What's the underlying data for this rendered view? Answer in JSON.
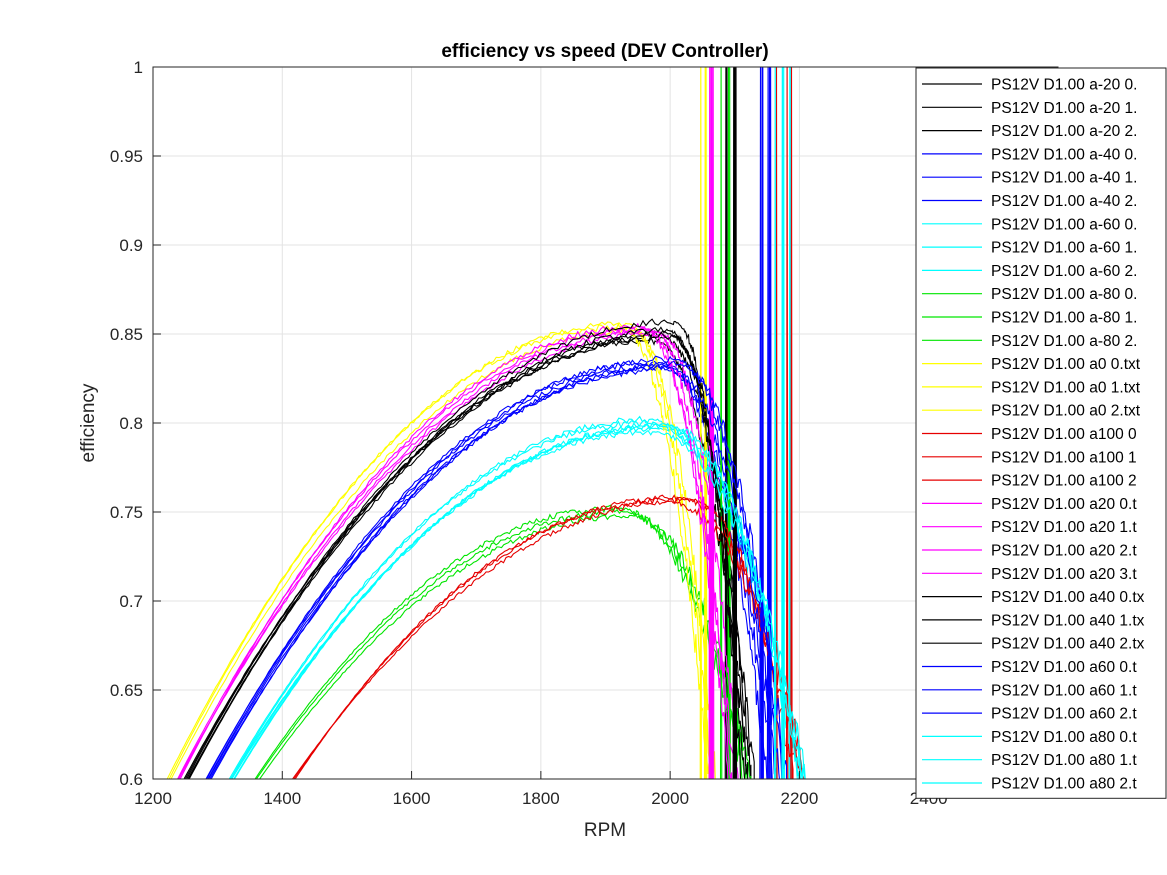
{
  "chart_data": {
    "type": "line",
    "title": "efficiency vs speed (DEV Controller)",
    "xlabel": "RPM",
    "ylabel": "efficiency",
    "xlim": [
      1200,
      2600
    ],
    "ylim": [
      0.6,
      1
    ],
    "xticks": [
      "1200",
      "1400",
      "1600",
      "1800",
      "2000",
      "2200",
      "2400"
    ],
    "yticks": [
      "0.6",
      "0.65",
      "0.7",
      "0.75",
      "0.8",
      "0.85",
      "0.9",
      "0.95",
      "1"
    ],
    "grid": true,
    "legend_position": "top-right",
    "colors": {
      "black": "#000000",
      "blue": "#0000ff",
      "cyan": "#00ffff",
      "green": "#00e600",
      "yellow": "#ffff00",
      "red": "#e60000",
      "magenta": "#ff00ff"
    },
    "series": [
      {
        "name": "PS12V D1.00 a-20 0.",
        "color": "black",
        "peak_x": 1985,
        "peak_y": 0.848,
        "start_x": 1250,
        "drop_x": 2130
      },
      {
        "name": "PS12V D1.00 a-20 1.",
        "color": "black",
        "peak_x": 1975,
        "peak_y": 0.846,
        "start_x": 1255,
        "drop_x": 2120
      },
      {
        "name": "PS12V D1.00 a-20 2.",
        "color": "black",
        "peak_x": 1995,
        "peak_y": 0.85,
        "start_x": 1248,
        "drop_x": 2125
      },
      {
        "name": "PS12V D1.00 a-40 0.",
        "color": "blue",
        "peak_x": 1985,
        "peak_y": 0.832,
        "start_x": 1285,
        "drop_x": 2150
      },
      {
        "name": "PS12V D1.00 a-40 1.",
        "color": "blue",
        "peak_x": 1990,
        "peak_y": 0.83,
        "start_x": 1290,
        "drop_x": 2165
      },
      {
        "name": "PS12V D1.00 a-40 2.",
        "color": "blue",
        "peak_x": 1980,
        "peak_y": 0.834,
        "start_x": 1283,
        "drop_x": 2160
      },
      {
        "name": "PS12V D1.00 a-60 0.",
        "color": "cyan",
        "peak_x": 1960,
        "peak_y": 0.8,
        "start_x": 1320,
        "drop_x": 2205
      },
      {
        "name": "PS12V D1.00 a-60 1.",
        "color": "cyan",
        "peak_x": 1975,
        "peak_y": 0.797,
        "start_x": 1325,
        "drop_x": 2210
      },
      {
        "name": "PS12V D1.00 a-60 2.",
        "color": "cyan",
        "peak_x": 1965,
        "peak_y": 0.802,
        "start_x": 1318,
        "drop_x": 2200
      },
      {
        "name": "PS12V D1.00 a-80 0.",
        "color": "green",
        "peak_x": 1925,
        "peak_y": 0.75,
        "start_x": 1360,
        "drop_x": 2120
      },
      {
        "name": "PS12V D1.00 a-80 1.",
        "color": "green",
        "peak_x": 1935,
        "peak_y": 0.748,
        "start_x": 1365,
        "drop_x": 2125
      },
      {
        "name": "PS12V D1.00 a-80 2.",
        "color": "green",
        "peak_x": 1915,
        "peak_y": 0.752,
        "start_x": 1358,
        "drop_x": 2115
      },
      {
        "name": "PS12V D1.00 a0 0.txt",
        "color": "yellow",
        "peak_x": 1930,
        "peak_y": 0.856,
        "start_x": 1222,
        "drop_x": 2065
      },
      {
        "name": "PS12V D1.00 a0 1.txt",
        "color": "yellow",
        "peak_x": 1920,
        "peak_y": 0.854,
        "start_x": 1225,
        "drop_x": 2060
      },
      {
        "name": "PS12V D1.00 a0 2.txt",
        "color": "yellow",
        "peak_x": 1940,
        "peak_y": 0.852,
        "start_x": 1228,
        "drop_x": 2070
      },
      {
        "name": "PS12V D1.00 a100 0",
        "color": "red",
        "peak_x": 2010,
        "peak_y": 0.758,
        "start_x": 1418,
        "drop_x": 2200
      },
      {
        "name": "PS12V D1.00 a100 1",
        "color": "red",
        "peak_x": 1990,
        "peak_y": 0.756,
        "start_x": 1420,
        "drop_x": 2210
      },
      {
        "name": "PS12V D1.00 a100 2",
        "color": "red",
        "peak_x": 2030,
        "peak_y": 0.757,
        "start_x": 1416,
        "drop_x": 2190
      },
      {
        "name": "PS12V D1.00 a20 0.t",
        "color": "magenta",
        "peak_x": 1960,
        "peak_y": 0.853,
        "start_x": 1238,
        "drop_x": 2090
      },
      {
        "name": "PS12V D1.00 a20 1.t",
        "color": "magenta",
        "peak_x": 1970,
        "peak_y": 0.852,
        "start_x": 1240,
        "drop_x": 2095
      },
      {
        "name": "PS12V D1.00 a20 2.t",
        "color": "magenta",
        "peak_x": 1950,
        "peak_y": 0.854,
        "start_x": 1242,
        "drop_x": 2100
      },
      {
        "name": "PS12V D1.00 a20 3.t",
        "color": "magenta",
        "peak_x": 1980,
        "peak_y": 0.851,
        "start_x": 1239,
        "drop_x": 2105
      },
      {
        "name": "PS12V D1.00 a40 0.tx",
        "color": "black",
        "peak_x": 2005,
        "peak_y": 0.857,
        "start_x": 1252,
        "drop_x": 2110
      },
      {
        "name": "PS12V D1.00 a40 1.tx",
        "color": "black",
        "peak_x": 1995,
        "peak_y": 0.852,
        "start_x": 1256,
        "drop_x": 2115
      },
      {
        "name": "PS12V D1.00 a40 2.tx",
        "color": "black",
        "peak_x": 2000,
        "peak_y": 0.849,
        "start_x": 1254,
        "drop_x": 2120
      },
      {
        "name": "PS12V D1.00 a60 0.t",
        "color": "blue",
        "peak_x": 2000,
        "peak_y": 0.836,
        "start_x": 1282,
        "drop_x": 2175
      },
      {
        "name": "PS12V D1.00 a60 1.t",
        "color": "blue",
        "peak_x": 2010,
        "peak_y": 0.833,
        "start_x": 1288,
        "drop_x": 2180
      },
      {
        "name": "PS12V D1.00 a60 2.t",
        "color": "blue",
        "peak_x": 1995,
        "peak_y": 0.831,
        "start_x": 1286,
        "drop_x": 2170
      },
      {
        "name": "PS12V D1.00 a80 0.t",
        "color": "cyan",
        "peak_x": 1985,
        "peak_y": 0.798,
        "start_x": 1322,
        "drop_x": 2205
      },
      {
        "name": "PS12V D1.00 a80 1.t",
        "color": "cyan",
        "peak_x": 1970,
        "peak_y": 0.795,
        "start_x": 1326,
        "drop_x": 2210
      },
      {
        "name": "PS12V D1.00 a80 2.t",
        "color": "cyan",
        "peak_x": 1990,
        "peak_y": 0.799,
        "start_x": 1320,
        "drop_x": 2200
      }
    ]
  }
}
